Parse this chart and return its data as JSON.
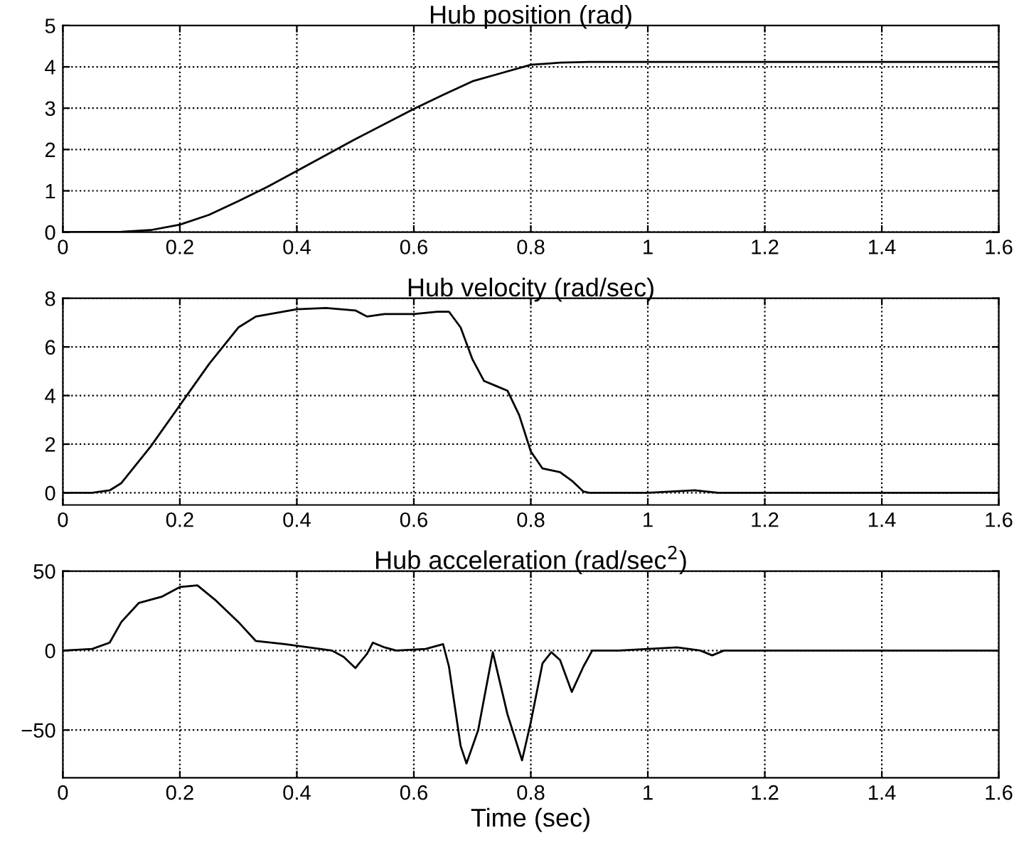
{
  "chart_data": [
    {
      "type": "line",
      "title": "Hub position (rad)",
      "xlim": [
        0,
        1.6
      ],
      "xticks": [
        0,
        0.2,
        0.4,
        0.6,
        0.8,
        1,
        1.2,
        1.4,
        1.6
      ],
      "ylim": [
        0,
        5
      ],
      "yticks": [
        0,
        1,
        2,
        3,
        4,
        5
      ],
      "grid": true,
      "series": [
        {
          "color": "#000000",
          "x": [
            0,
            0.1,
            0.15,
            0.2,
            0.25,
            0.3,
            0.35,
            0.4,
            0.5,
            0.6,
            0.65,
            0.7,
            0.75,
            0.8,
            0.85,
            0.9,
            1.0,
            1.6
          ],
          "values": [
            0,
            0.01,
            0.05,
            0.18,
            0.42,
            0.75,
            1.1,
            1.48,
            2.25,
            2.98,
            3.32,
            3.65,
            3.85,
            4.05,
            4.1,
            4.12,
            4.12,
            4.12
          ]
        }
      ]
    },
    {
      "type": "line",
      "title": "Hub velocity (rad/sec)",
      "xlim": [
        0,
        1.6
      ],
      "xticks": [
        0,
        0.2,
        0.4,
        0.6,
        0.8,
        1,
        1.2,
        1.4,
        1.6
      ],
      "ylim": [
        -0.5,
        8
      ],
      "yticks": [
        0,
        2,
        4,
        6,
        8
      ],
      "grid": true,
      "series": [
        {
          "color": "#000000",
          "x": [
            0,
            0.05,
            0.08,
            0.1,
            0.15,
            0.2,
            0.25,
            0.3,
            0.33,
            0.4,
            0.45,
            0.5,
            0.52,
            0.55,
            0.6,
            0.64,
            0.66,
            0.68,
            0.7,
            0.72,
            0.74,
            0.76,
            0.78,
            0.8,
            0.82,
            0.85,
            0.87,
            0.89,
            0.9,
            1.0,
            1.08,
            1.12,
            1.6
          ],
          "values": [
            0,
            0,
            0.1,
            0.4,
            1.9,
            3.6,
            5.3,
            6.8,
            7.25,
            7.55,
            7.6,
            7.5,
            7.25,
            7.35,
            7.35,
            7.45,
            7.45,
            6.8,
            5.5,
            4.6,
            4.4,
            4.2,
            3.2,
            1.7,
            1.0,
            0.85,
            0.5,
            0.05,
            0,
            0,
            0.1,
            0,
            0
          ]
        }
      ]
    },
    {
      "type": "line",
      "title": "Hub acceleration (rad/sec$^{2}$)",
      "xlabel": "Time (sec)",
      "xlim": [
        0,
        1.6
      ],
      "xticks": [
        0,
        0.2,
        0.4,
        0.6,
        0.8,
        1,
        1.2,
        1.4,
        1.6
      ],
      "ylim": [
        -80,
        50
      ],
      "yticks": [
        {
          "value": -50,
          "label": "−50"
        },
        0,
        50
      ],
      "grid": true,
      "series": [
        {
          "color": "#000000",
          "x": [
            0,
            0.05,
            0.08,
            0.1,
            0.13,
            0.17,
            0.2,
            0.23,
            0.26,
            0.3,
            0.33,
            0.38,
            0.42,
            0.46,
            0.48,
            0.5,
            0.52,
            0.53,
            0.55,
            0.57,
            0.62,
            0.65,
            0.66,
            0.68,
            0.69,
            0.71,
            0.735,
            0.76,
            0.785,
            0.8,
            0.82,
            0.835,
            0.85,
            0.87,
            0.89,
            0.905,
            0.95,
            1.05,
            1.09,
            1.11,
            1.13,
            1.6
          ],
          "values": [
            0,
            1,
            5,
            18,
            30,
            34,
            40,
            41,
            32,
            18,
            6,
            4,
            2,
            0,
            -4,
            -11,
            -2,
            5,
            2,
            0,
            1,
            4,
            -10,
            -60,
            -71,
            -50,
            -1,
            -40,
            -69,
            -45,
            -8,
            -1,
            -6,
            -26,
            -10,
            0,
            0,
            2,
            0,
            -3,
            0,
            0
          ]
        }
      ]
    }
  ]
}
